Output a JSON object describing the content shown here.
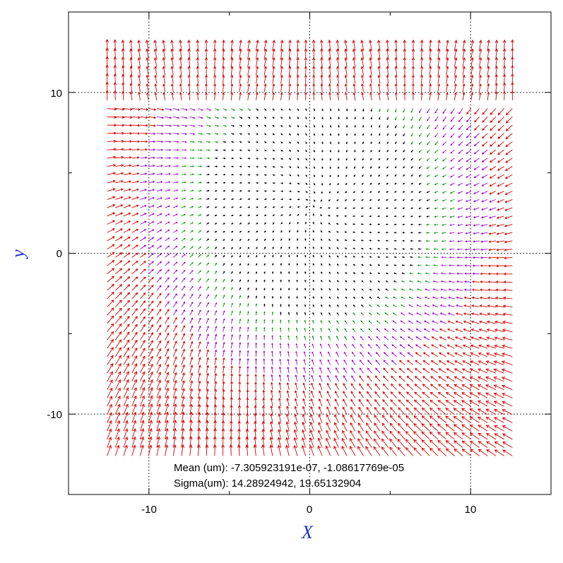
{
  "chart_data": {
    "type": "vector-field",
    "xlabel": "X",
    "ylabel": "y",
    "xlim": [
      -15,
      15
    ],
    "ylim": [
      -15,
      15
    ],
    "xticks": [
      -10,
      0,
      10
    ],
    "yticks": [
      -10,
      0,
      10
    ],
    "xtick_labels": [
      "-10",
      "0",
      "10"
    ],
    "ytick_labels": [
      "-10",
      "0",
      "10"
    ],
    "grid": true,
    "grid_style": "dotted",
    "label_color": "#1f2fd6",
    "series": [
      {
        "color": "#d40000",
        "min_magnitude": 0.6
      },
      {
        "color": "#a000d8",
        "min_magnitude": 0.3
      },
      {
        "color": "#009a00",
        "min_magnitude": 0.12
      },
      {
        "color": "#000000",
        "min_magnitude": 0.0
      }
    ],
    "field": {
      "x_range": [
        -12.6,
        12.6
      ],
      "y_range": [
        -12.6,
        12.6
      ],
      "rows": 50,
      "cols": 50
    },
    "annotations": {
      "mean": "Mean (um): -7.305923191e-07, -1.08617769e-05",
      "sigma": "Sigma(um): 14.28924942, 19.65132904"
    }
  }
}
